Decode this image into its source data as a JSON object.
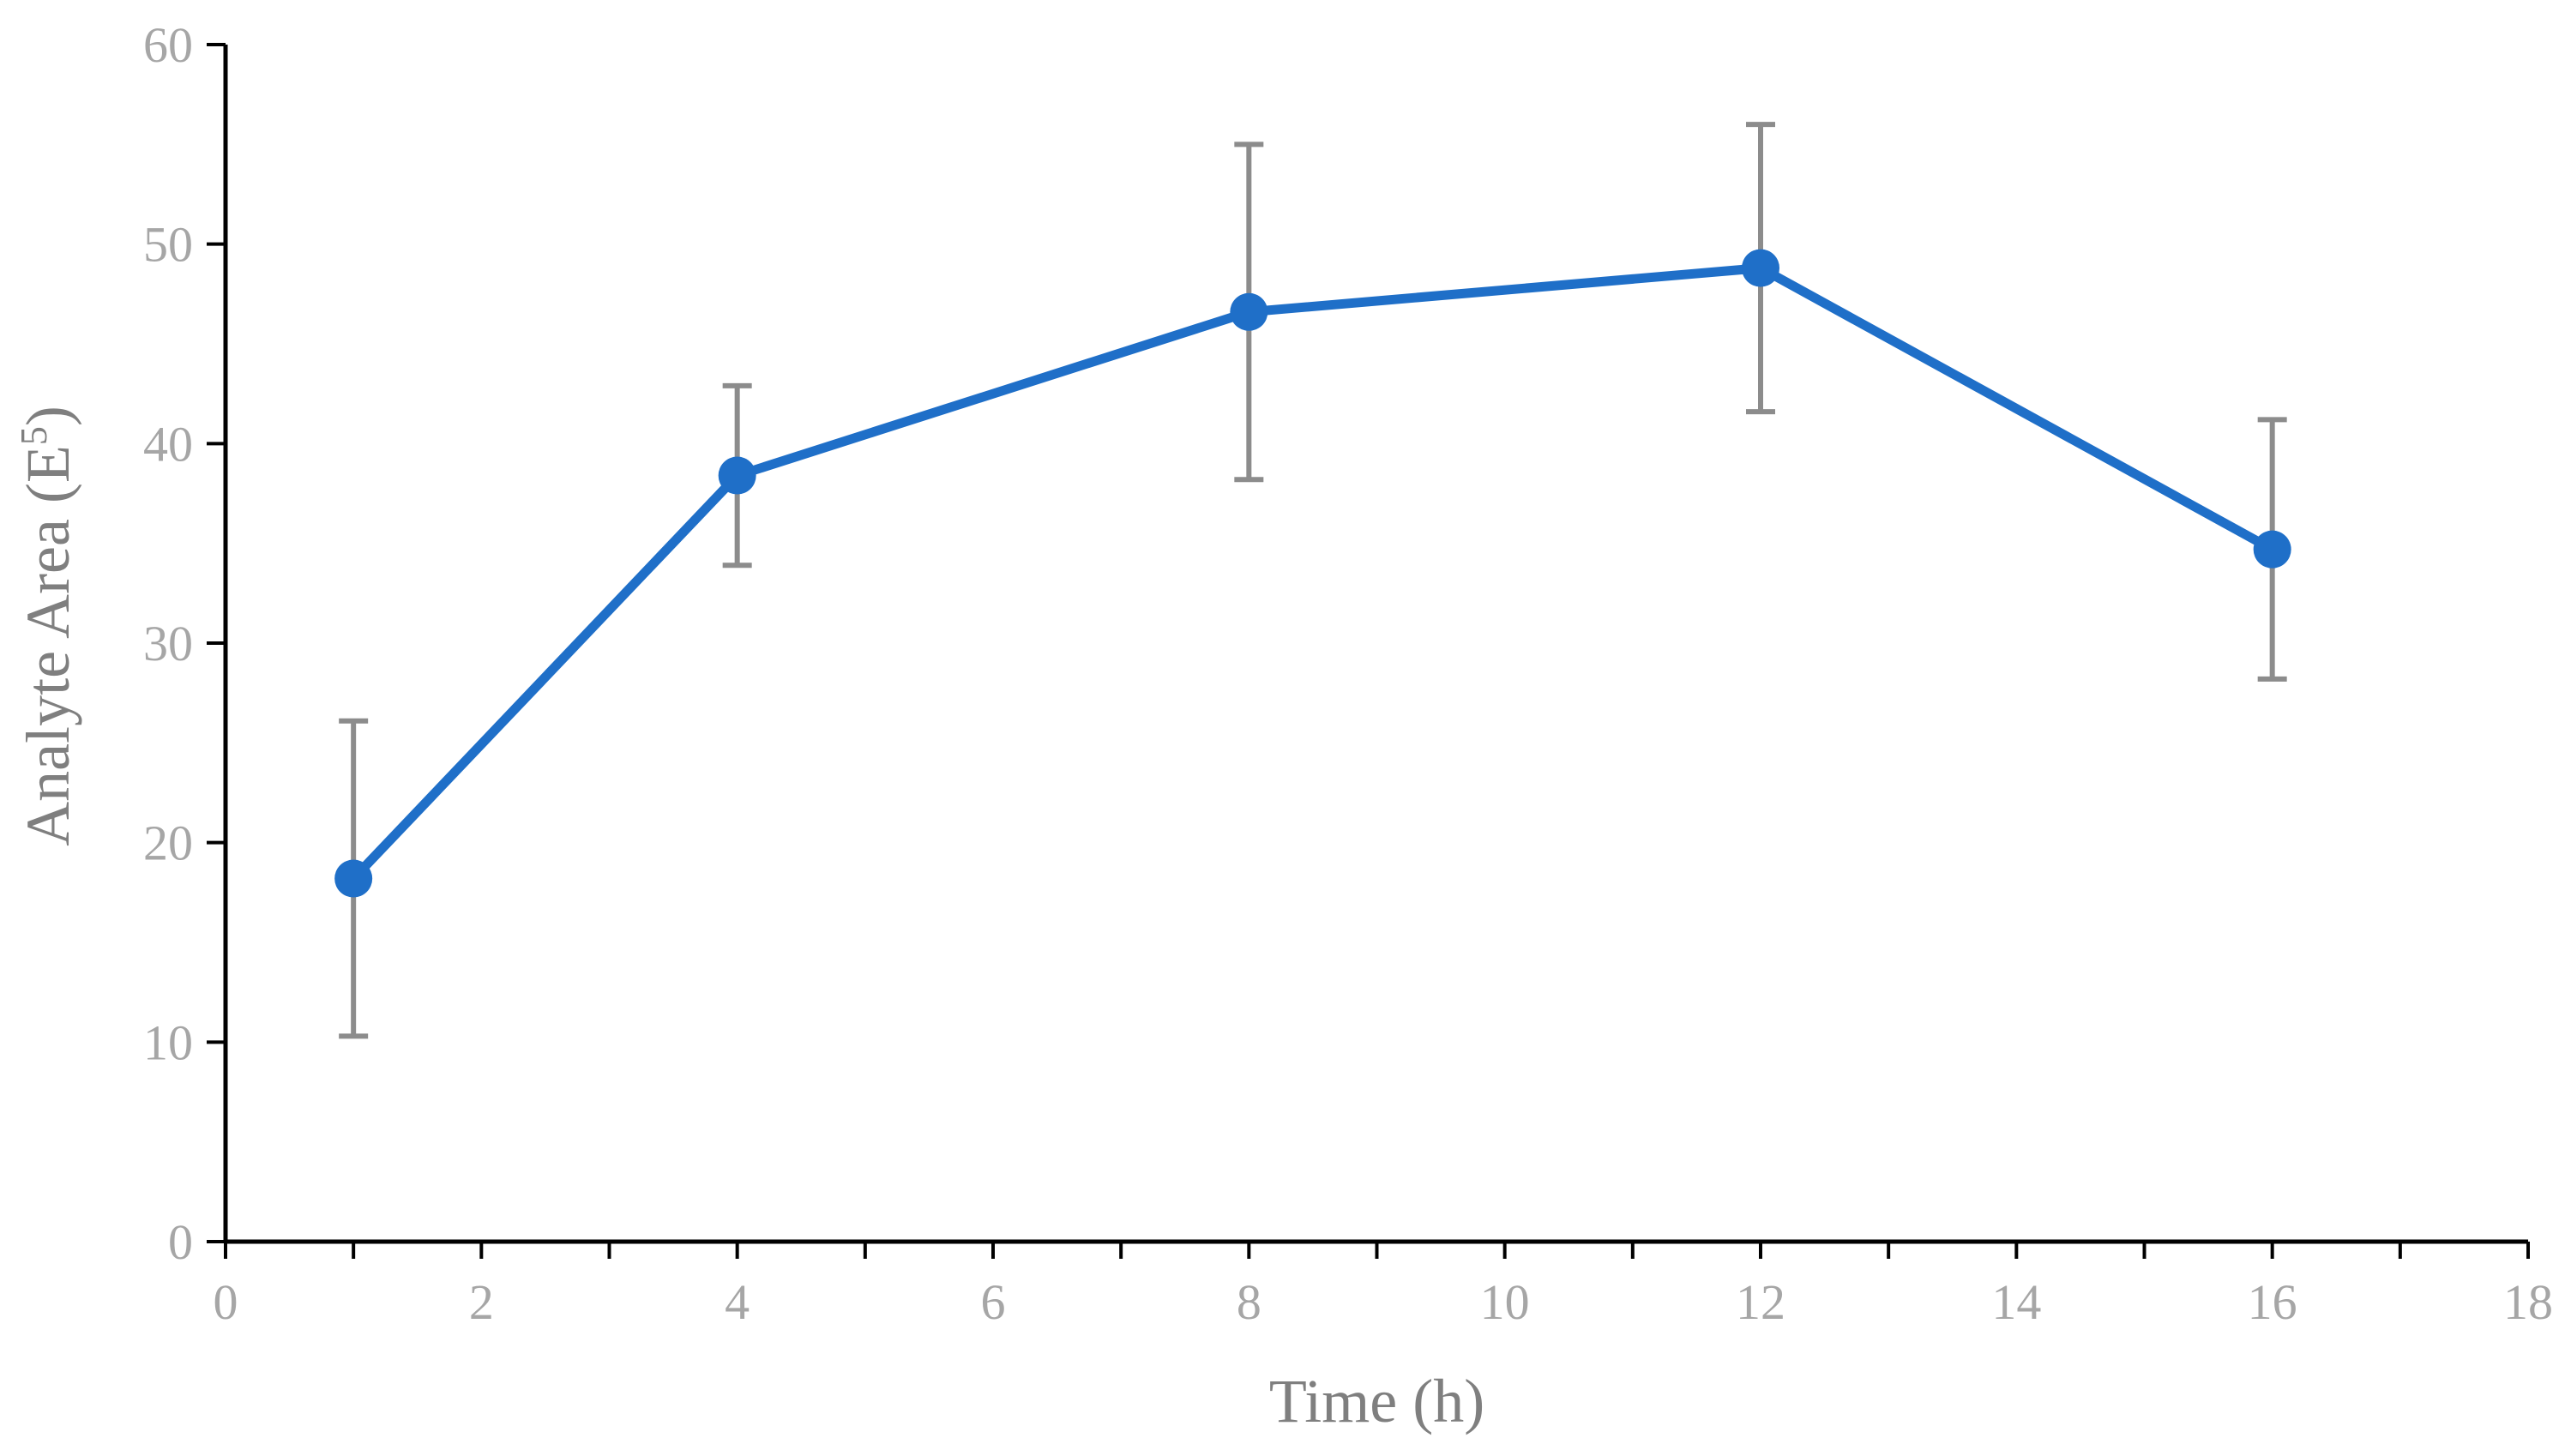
{
  "chart_data": {
    "type": "line",
    "xlabel": "Time (h)",
    "ylabel_main": "Analyte Area (E",
    "ylabel_sup": "5",
    "ylabel_close": ")",
    "xlim": [
      0,
      18
    ],
    "ylim": [
      0,
      60
    ],
    "xticks": [
      0,
      2,
      4,
      6,
      8,
      10,
      12,
      14,
      16,
      18
    ],
    "yticks": [
      0,
      10,
      20,
      30,
      40,
      50,
      60
    ],
    "x_minor_step": 1,
    "grid": false,
    "series": [
      {
        "color": "#1f6fc8",
        "x": [
          1,
          4,
          8,
          12,
          16
        ],
        "y": [
          18.2,
          38.4,
          46.6,
          48.8,
          34.7
        ],
        "error": [
          7.9,
          4.5,
          8.4,
          7.2,
          6.5
        ]
      }
    ]
  }
}
